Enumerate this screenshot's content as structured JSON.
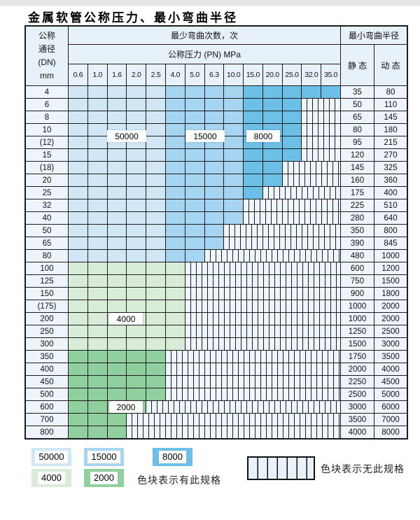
{
  "title": "金属软管公称压力、最小弯曲半径",
  "table": {
    "corner": {
      "line1": "公称",
      "line2": "通径",
      "line3": "(DN)",
      "line4": "mm"
    },
    "cycles_header": "最少弯曲次数，次",
    "pn_header": "公称压力 (PN) MPa",
    "radius_header": "最小弯曲半径",
    "static_header": "静 态",
    "dynamic_header": "动 态",
    "pn_columns": [
      "0.6",
      "1.0",
      "1.6",
      "2.0",
      "2.5",
      "4.0",
      "5.0",
      "6.3",
      "10.0",
      "15.0",
      "20.0",
      "25.0",
      "32.0",
      "35.0"
    ],
    "rows": [
      {
        "dn": "4",
        "max_pn": "35.0",
        "colored_cols": 14,
        "region": "blue",
        "static": "35",
        "dynamic": "80"
      },
      {
        "dn": "6",
        "max_pn": "25.0",
        "colored_cols": 12,
        "region": "blue",
        "static": "50",
        "dynamic": "110"
      },
      {
        "dn": "8",
        "max_pn": "25.0",
        "colored_cols": 12,
        "region": "blue",
        "static": "65",
        "dynamic": "145"
      },
      {
        "dn": "10",
        "max_pn": "25.0",
        "colored_cols": 12,
        "region": "blue",
        "static": "80",
        "dynamic": "180"
      },
      {
        "dn": "(12)",
        "max_pn": "25.0",
        "colored_cols": 12,
        "region": "blue",
        "static": "95",
        "dynamic": "215"
      },
      {
        "dn": "15",
        "max_pn": "25.0",
        "colored_cols": 12,
        "region": "blue",
        "static": "120",
        "dynamic": "270"
      },
      {
        "dn": "(18)",
        "max_pn": "20.0",
        "colored_cols": 11,
        "region": "blue",
        "static": "145",
        "dynamic": "325"
      },
      {
        "dn": "20",
        "max_pn": "20.0",
        "colored_cols": 11,
        "region": "blue",
        "static": "160",
        "dynamic": "360"
      },
      {
        "dn": "25",
        "max_pn": "15.0",
        "colored_cols": 10,
        "region": "blue",
        "static": "175",
        "dynamic": "400"
      },
      {
        "dn": "32",
        "max_pn": "10.0",
        "colored_cols": 9,
        "region": "blue",
        "static": "225",
        "dynamic": "510"
      },
      {
        "dn": "40",
        "max_pn": "10.0",
        "colored_cols": 9,
        "region": "blue",
        "static": "280",
        "dynamic": "640"
      },
      {
        "dn": "50",
        "max_pn": "6.3",
        "colored_cols": 8,
        "region": "blue",
        "static": "350",
        "dynamic": "800"
      },
      {
        "dn": "65",
        "max_pn": "6.3",
        "colored_cols": 8,
        "region": "blue",
        "static": "390",
        "dynamic": "845"
      },
      {
        "dn": "80",
        "max_pn": "5.0",
        "colored_cols": 7,
        "region": "blue",
        "static": "480",
        "dynamic": "1000"
      },
      {
        "dn": "100",
        "max_pn": "4.0",
        "colored_cols": 6,
        "region": "4000",
        "static": "600",
        "dynamic": "1200"
      },
      {
        "dn": "125",
        "max_pn": "4.0",
        "colored_cols": 6,
        "region": "4000",
        "static": "750",
        "dynamic": "1500"
      },
      {
        "dn": "150",
        "max_pn": "4.0",
        "colored_cols": 6,
        "region": "4000",
        "static": "900",
        "dynamic": "1800"
      },
      {
        "dn": "(175)",
        "max_pn": "4.0",
        "colored_cols": 6,
        "region": "4000",
        "static": "1000",
        "dynamic": "2000"
      },
      {
        "dn": "200",
        "max_pn": "4.0",
        "colored_cols": 6,
        "region": "4000",
        "static": "1000",
        "dynamic": "2000"
      },
      {
        "dn": "250",
        "max_pn": "4.0",
        "colored_cols": 6,
        "region": "4000",
        "static": "1250",
        "dynamic": "2500"
      },
      {
        "dn": "300",
        "max_pn": "4.0",
        "colored_cols": 6,
        "region": "4000",
        "static": "1500",
        "dynamic": "3000"
      },
      {
        "dn": "350",
        "max_pn": "2.5",
        "colored_cols": 5,
        "region": "2000",
        "static": "1750",
        "dynamic": "3500"
      },
      {
        "dn": "400",
        "max_pn": "2.5",
        "colored_cols": 5,
        "region": "2000",
        "static": "2000",
        "dynamic": "4000"
      },
      {
        "dn": "450",
        "max_pn": "2.5",
        "colored_cols": 5,
        "region": "2000",
        "static": "2250",
        "dynamic": "4500"
      },
      {
        "dn": "500",
        "max_pn": "2.5",
        "colored_cols": 5,
        "region": "2000",
        "static": "2500",
        "dynamic": "5000"
      },
      {
        "dn": "600",
        "max_pn": "2.0",
        "colored_cols": 4,
        "region": "2000",
        "static": "3000",
        "dynamic": "6000"
      },
      {
        "dn": "700",
        "max_pn": "1.6",
        "colored_cols": 3,
        "region": "2000",
        "static": "3500",
        "dynamic": "7000"
      },
      {
        "dn": "800",
        "max_pn": "1.6",
        "colored_cols": 3,
        "region": "2000",
        "static": "4000",
        "dynamic": "8000"
      }
    ]
  },
  "region_labels": {
    "r50000": "50000",
    "r15000": "15000",
    "r8000": "8000",
    "r4000": "4000",
    "r2000": "2000"
  },
  "legend": {
    "items": [
      {
        "value": "50000"
      },
      {
        "value": "15000"
      },
      {
        "value": "8000"
      },
      {
        "value": "4000"
      },
      {
        "value": "2000"
      }
    ],
    "note_has": "色块表示有此规格",
    "note_none": "色块表示无此规格"
  },
  "colors": {
    "c50000": "#d2e7f6",
    "c15000": "#a5d5f0",
    "c8000": "#6cbfe7",
    "c4000": "#d8ecd8",
    "c2000": "#90cf9e",
    "hatch_bg": "#eef5fb",
    "grid_line": "#1c1c1c"
  },
  "chart_data": {
    "type": "heatmap",
    "title": "金属软管公称压力、最小弯曲半径",
    "x_axis_label": "公称压力 (PN) MPa",
    "y_axis_label": "公称通径 (DN) mm",
    "columns_pn_mpa": [
      0.6,
      1.0,
      1.6,
      2.0,
      2.5,
      4.0,
      5.0,
      6.3,
      10.0,
      15.0,
      20.0,
      25.0,
      32.0,
      35.0
    ],
    "rows": [
      {
        "dn": "4",
        "max_pn": 35.0,
        "static": 35,
        "dynamic": 80
      },
      {
        "dn": "6",
        "max_pn": 25.0,
        "static": 50,
        "dynamic": 110
      },
      {
        "dn": "8",
        "max_pn": 25.0,
        "static": 65,
        "dynamic": 145
      },
      {
        "dn": "10",
        "max_pn": 25.0,
        "static": 80,
        "dynamic": 180
      },
      {
        "dn": "(12)",
        "max_pn": 25.0,
        "static": 95,
        "dynamic": 215
      },
      {
        "dn": "15",
        "max_pn": 25.0,
        "static": 120,
        "dynamic": 270
      },
      {
        "dn": "(18)",
        "max_pn": 20.0,
        "static": 145,
        "dynamic": 325
      },
      {
        "dn": "20",
        "max_pn": 20.0,
        "static": 160,
        "dynamic": 360
      },
      {
        "dn": "25",
        "max_pn": 15.0,
        "static": 175,
        "dynamic": 400
      },
      {
        "dn": "32",
        "max_pn": 10.0,
        "static": 225,
        "dynamic": 510
      },
      {
        "dn": "40",
        "max_pn": 10.0,
        "static": 280,
        "dynamic": 640
      },
      {
        "dn": "50",
        "max_pn": 6.3,
        "static": 350,
        "dynamic": 800
      },
      {
        "dn": "65",
        "max_pn": 6.3,
        "static": 390,
        "dynamic": 845
      },
      {
        "dn": "80",
        "max_pn": 5.0,
        "static": 480,
        "dynamic": 1000
      },
      {
        "dn": "100",
        "max_pn": 4.0,
        "static": 600,
        "dynamic": 1200
      },
      {
        "dn": "125",
        "max_pn": 4.0,
        "static": 750,
        "dynamic": 1500
      },
      {
        "dn": "150",
        "max_pn": 4.0,
        "static": 900,
        "dynamic": 1800
      },
      {
        "dn": "(175)",
        "max_pn": 4.0,
        "static": 1000,
        "dynamic": 2000
      },
      {
        "dn": "200",
        "max_pn": 4.0,
        "static": 1000,
        "dynamic": 2000
      },
      {
        "dn": "250",
        "max_pn": 4.0,
        "static": 1250,
        "dynamic": 2500
      },
      {
        "dn": "300",
        "max_pn": 4.0,
        "static": 1500,
        "dynamic": 3000
      },
      {
        "dn": "350",
        "max_pn": 2.5,
        "static": 1750,
        "dynamic": 3500
      },
      {
        "dn": "400",
        "max_pn": 2.5,
        "static": 2000,
        "dynamic": 4000
      },
      {
        "dn": "450",
        "max_pn": 2.5,
        "static": 2250,
        "dynamic": 4500
      },
      {
        "dn": "500",
        "max_pn": 2.5,
        "static": 2500,
        "dynamic": 5000
      },
      {
        "dn": "600",
        "max_pn": 2.0,
        "static": 3000,
        "dynamic": 6000
      },
      {
        "dn": "700",
        "max_pn": 1.6,
        "static": 3500,
        "dynamic": 7000
      },
      {
        "dn": "800",
        "max_pn": 1.6,
        "static": 4000,
        "dynamic": 8000
      }
    ],
    "bend_cycle_regions": [
      {
        "cycles": 50000,
        "pn_range_mpa": [
          0.6,
          2.5
        ],
        "dn_rows": "4-80",
        "color": "#d2e7f6"
      },
      {
        "cycles": 15000,
        "pn_range_mpa": [
          4.0,
          10.0
        ],
        "dn_rows": "4-80",
        "color": "#a5d5f0"
      },
      {
        "cycles": 8000,
        "pn_range_mpa": [
          15.0,
          35.0
        ],
        "dn_rows": "4-80",
        "color": "#6cbfe7"
      },
      {
        "cycles": 4000,
        "pn_range_mpa": [
          0.6,
          4.0
        ],
        "dn_rows": "100-300",
        "color": "#d8ecd8"
      },
      {
        "cycles": 2000,
        "pn_range_mpa": [
          0.6,
          2.5
        ],
        "dn_rows": "350-800",
        "color": "#90cf9e"
      }
    ],
    "legend_notes": [
      "色块表示有此规格",
      "色块表示无此规格"
    ],
    "hatched_cells_meaning": "无此规格"
  }
}
